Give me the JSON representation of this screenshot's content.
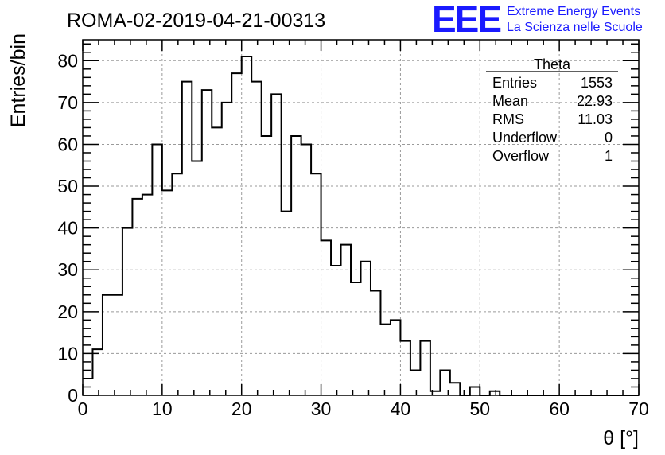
{
  "chart_data": {
    "type": "histogram",
    "title": "ROMA-02-2019-04-21-00313",
    "xlabel": "θ [°]",
    "ylabel": "Entries/bin",
    "xlim": [
      0,
      70
    ],
    "ylim": [
      0,
      85
    ],
    "bin_width": 1.25,
    "x_ticks": [
      0,
      10,
      20,
      30,
      40,
      50,
      60,
      70
    ],
    "y_ticks": [
      0,
      10,
      20,
      30,
      40,
      50,
      60,
      70,
      80
    ],
    "grid": true,
    "values": [
      4,
      11,
      24,
      24,
      40,
      47,
      48,
      60,
      49,
      53,
      75,
      56,
      73,
      64,
      70,
      77,
      81,
      75,
      62,
      72,
      44,
      62,
      60,
      53,
      37,
      31,
      36,
      27,
      32,
      25,
      17,
      18,
      13,
      6,
      13,
      1,
      6,
      3,
      0,
      2,
      0,
      1,
      0,
      0,
      0,
      0,
      0,
      0,
      0,
      0,
      0,
      0,
      0,
      0,
      0,
      0
    ],
    "stats_box": {
      "name": "Theta",
      "rows": [
        {
          "label": "Entries",
          "value": "1553"
        },
        {
          "label": "Mean",
          "value": "22.93"
        },
        {
          "label": "RMS",
          "value": "11.03"
        },
        {
          "label": "Underflow",
          "value": "0"
        },
        {
          "label": "Overflow",
          "value": "1"
        }
      ]
    }
  },
  "logo": {
    "mark": "EEE",
    "line1": "Extreme Energy Events",
    "line2": "La Scienza nelle Scuole",
    "color": "#1a1aff"
  }
}
